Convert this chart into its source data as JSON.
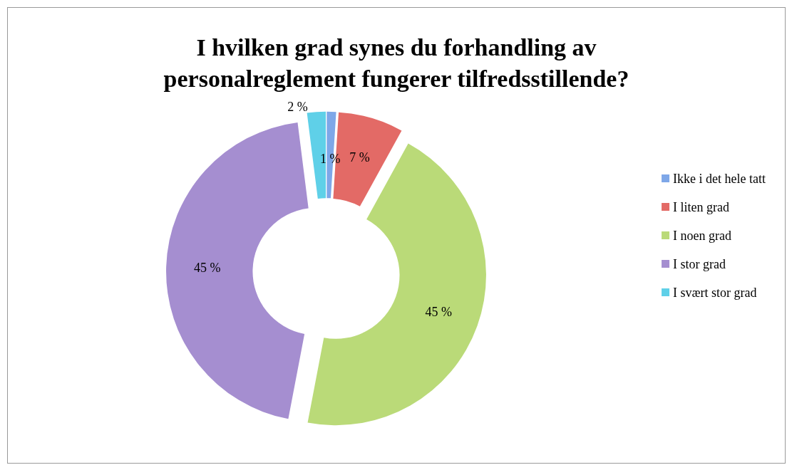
{
  "chart_data": {
    "type": "donut",
    "title": "I hvilken grad synes du forhandling av\npersonalreglement fungerer tilfredsstillende?",
    "categories": [
      "Ikke i det hele tatt",
      "I liten grad",
      "I noen grad",
      "I stor grad",
      "I svært stor grad"
    ],
    "values": [
      1,
      7,
      45,
      45,
      2
    ],
    "value_labels": [
      "1 %",
      "7 %",
      "45 %",
      "45 %",
      "2 %"
    ],
    "colors": [
      "#7ea7e8",
      "#e36a66",
      "#bada78",
      "#a58ed0",
      "#5fd0e8"
    ],
    "legend": "right"
  }
}
